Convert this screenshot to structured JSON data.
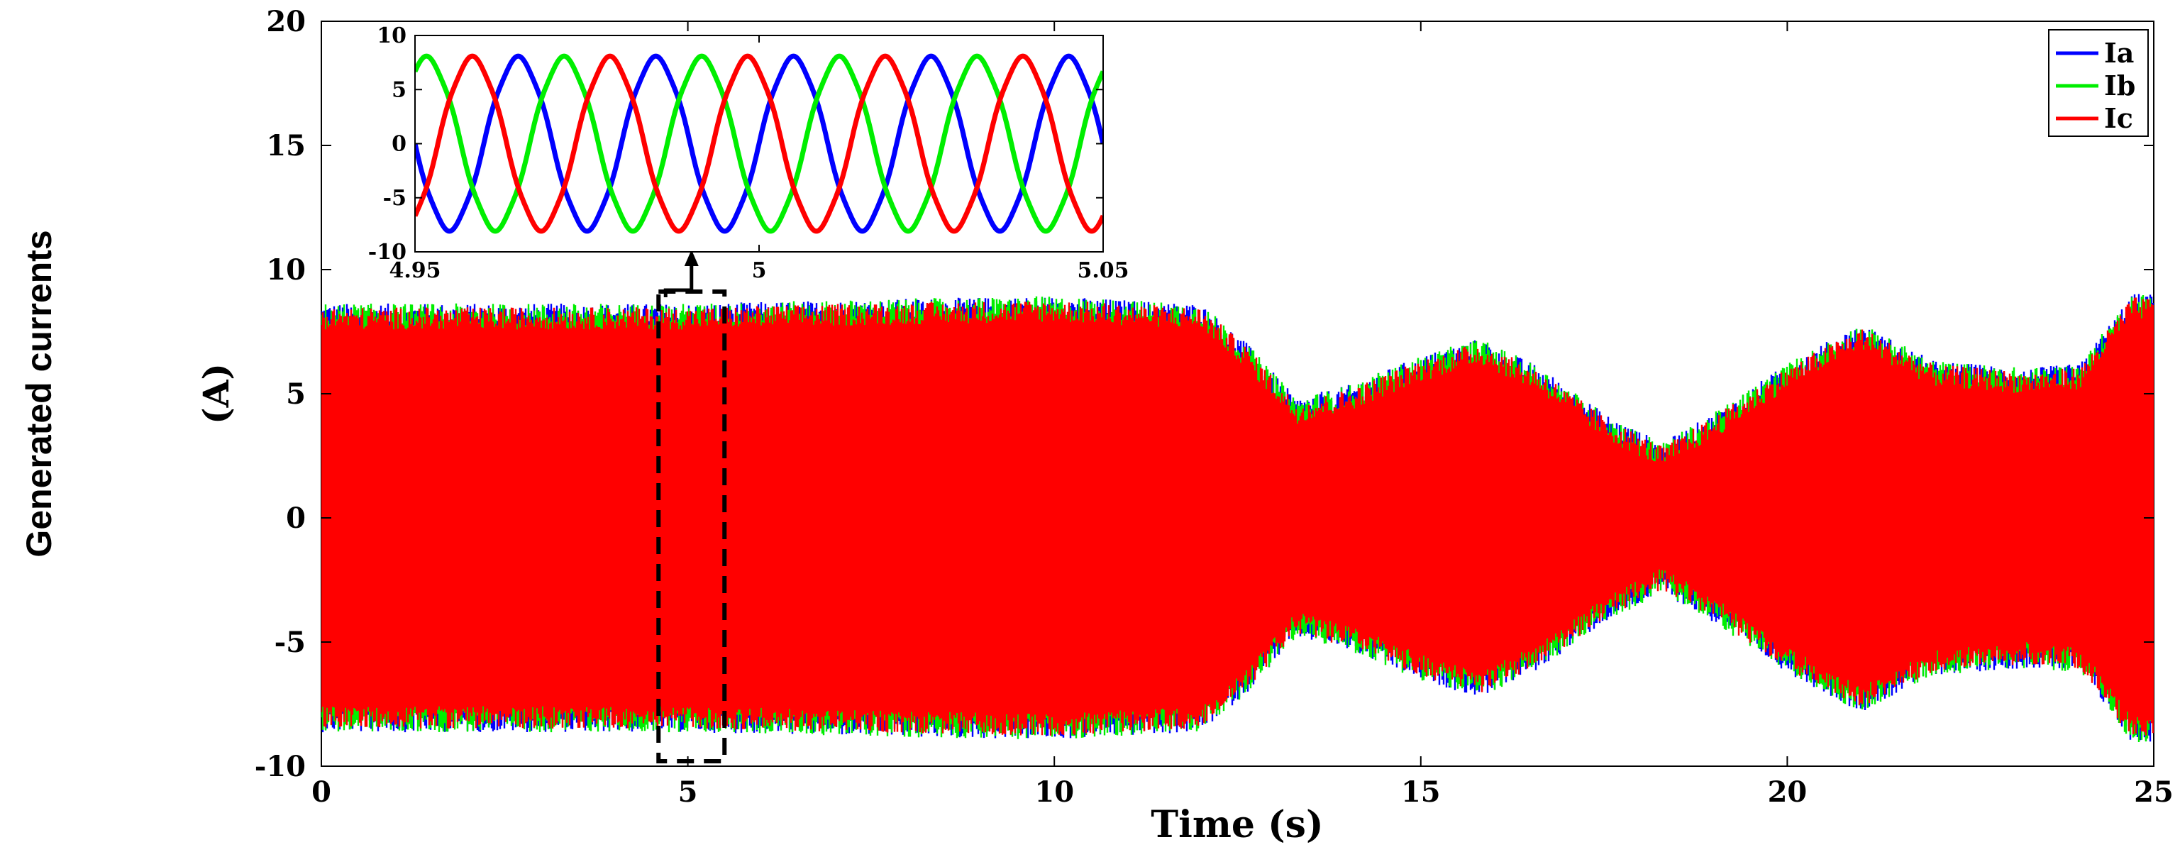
{
  "chart_data": [
    {
      "type": "line",
      "title": "",
      "xlabel": "Time (s)",
      "ylabel_line1": "Generated currents",
      "ylabel_line2": "(A)",
      "xlim": [
        0,
        25
      ],
      "ylim": [
        -10,
        20
      ],
      "xticks": [
        0,
        5,
        10,
        15,
        20,
        25
      ],
      "yticks": [
        -10,
        -5,
        0,
        5,
        10,
        15,
        20
      ],
      "grid": false,
      "legend_position": "top-right",
      "fundamental_frequency_hz": 50,
      "series": [
        {
          "name": "Ia",
          "color": "#0000ff"
        },
        {
          "name": "Ib",
          "color": "#00ee00"
        },
        {
          "name": "Ic",
          "color": "#ff0000"
        }
      ],
      "amplitude_envelope": {
        "t": [
          0,
          2,
          5,
          8,
          10,
          12,
          12.6,
          13.3,
          14,
          15,
          15.8,
          16.6,
          17.5,
          18.3,
          19,
          20,
          21,
          22,
          23.3,
          24,
          24.7,
          25
        ],
        "amplitude": [
          8.0,
          8.0,
          8.0,
          8.2,
          8.3,
          8.0,
          6.5,
          4.2,
          4.7,
          5.9,
          6.6,
          5.5,
          3.6,
          2.4,
          3.6,
          5.6,
          7.2,
          5.7,
          5.4,
          5.6,
          8.4,
          8.4
        ]
      },
      "zoom_box": {
        "x_range": [
          4.6,
          5.5
        ],
        "y_range": [
          -9,
          9
        ]
      }
    },
    {
      "type": "line",
      "title": "",
      "xlim": [
        4.95,
        5.05
      ],
      "ylim": [
        -10,
        10
      ],
      "xticks": [
        4.95,
        5,
        5.05
      ],
      "yticks": [
        -10,
        -5,
        0,
        5,
        10
      ],
      "amplitude": 7.9,
      "frequency_hz": 50,
      "series": [
        {
          "name": "Ia",
          "color": "#0000ff",
          "phase_deg": 0
        },
        {
          "name": "Ib",
          "color": "#00ee00",
          "phase_deg": -120
        },
        {
          "name": "Ic",
          "color": "#ff0000",
          "phase_deg": 120
        }
      ]
    }
  ]
}
